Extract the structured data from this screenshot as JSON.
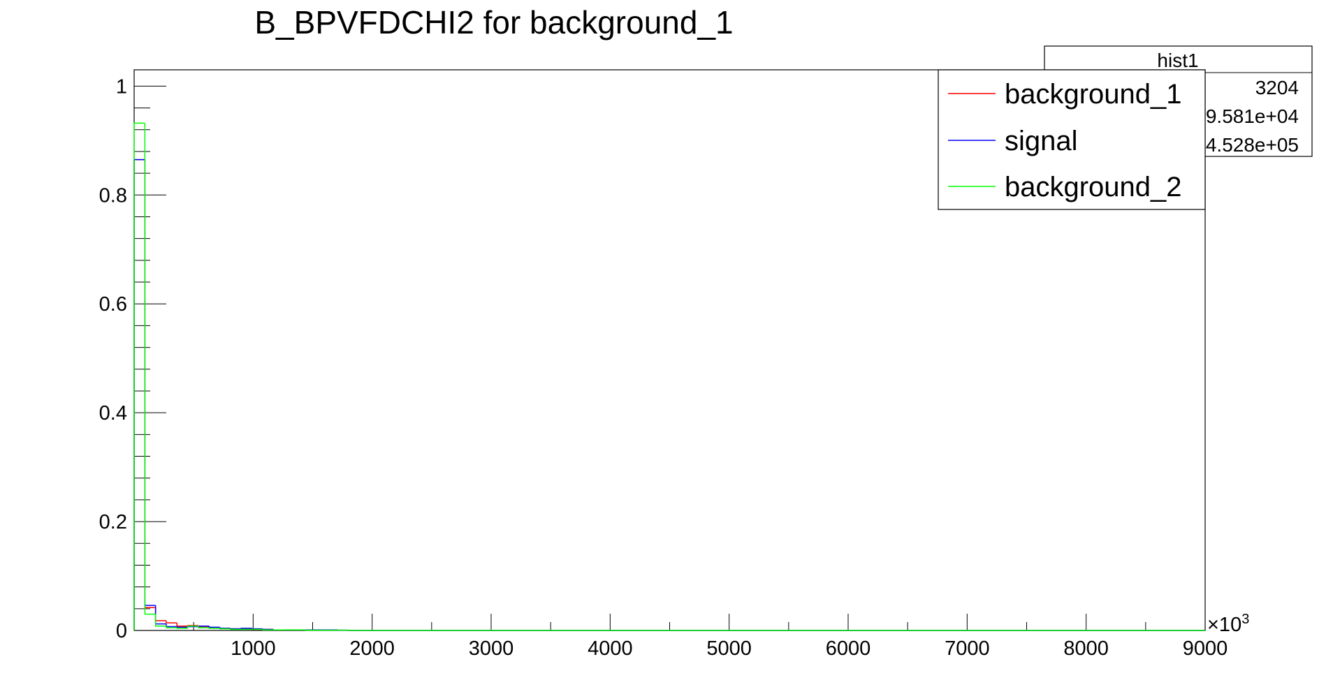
{
  "chart_data": {
    "type": "histogram",
    "title": "B_BPVFDCHI2 for background_1",
    "xlabel": "",
    "ylabel": "",
    "x_multiplier": "×10",
    "x_multiplier_exponent": "3",
    "xlim": [
      0,
      9000000
    ],
    "ylim": [
      0,
      1.03
    ],
    "x_ticks": [
      {
        "value": 1000000,
        "label": "1000"
      },
      {
        "value": 2000000,
        "label": "2000"
      },
      {
        "value": 3000000,
        "label": "3000"
      },
      {
        "value": 4000000,
        "label": "4000"
      },
      {
        "value": 5000000,
        "label": "5000"
      },
      {
        "value": 6000000,
        "label": "6000"
      },
      {
        "value": 7000000,
        "label": "7000"
      },
      {
        "value": 8000000,
        "label": "8000"
      },
      {
        "value": 9000000,
        "label": "9000"
      }
    ],
    "y_ticks": [
      {
        "value": 0,
        "label": "0"
      },
      {
        "value": 0.2,
        "label": "0.2"
      },
      {
        "value": 0.4,
        "label": "0.4"
      },
      {
        "value": 0.6,
        "label": "0.6"
      },
      {
        "value": 0.8,
        "label": "0.8"
      },
      {
        "value": 1,
        "label": "1"
      }
    ],
    "bin_width": 90000,
    "series": [
      {
        "name": "background_1",
        "color": "#ff0000",
        "values": [
          0.865,
          0.042,
          0.018,
          0.014,
          0.008,
          0.009,
          0.007,
          0.005,
          0.004,
          0.003,
          0.003,
          0.002,
          0.002,
          0.001,
          0.001,
          0.001,
          0.001,
          0.001,
          0.001,
          0.0005
        ]
      },
      {
        "name": "signal",
        "color": "#0000ff",
        "values": [
          0.865,
          0.046,
          0.012,
          0.007,
          0.006,
          0.007,
          0.008,
          0.006,
          0.004,
          0.003,
          0.004,
          0.003,
          0.002,
          0.001,
          0.001,
          0.001,
          0.001,
          0.001,
          0.001,
          0.0005
        ]
      },
      {
        "name": "background_2",
        "color": "#00ff00",
        "values": [
          0.932,
          0.03,
          0.008,
          0.005,
          0.004,
          0.008,
          0.005,
          0.004,
          0.003,
          0.002,
          0.002,
          0.002,
          0.001,
          0.001,
          0.001,
          0.001,
          0.0005,
          0.0005,
          0.0005,
          0.0005
        ]
      }
    ]
  },
  "legend": {
    "position": "top-right",
    "entries": [
      {
        "label": "background_1",
        "color": "#ff0000"
      },
      {
        "label": "signal",
        "color": "#0000ff"
      },
      {
        "label": "background_2",
        "color": "#00ff00"
      }
    ]
  },
  "stats_box": {
    "title": "hist1",
    "values": [
      "3204",
      "9.581e+04",
      "4.528e+05"
    ]
  }
}
